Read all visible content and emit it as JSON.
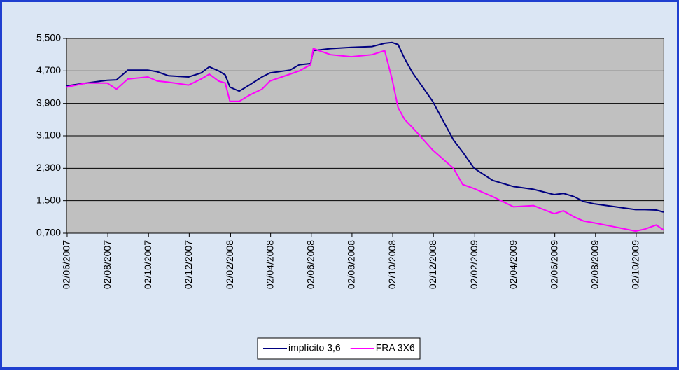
{
  "chart_data": {
    "type": "line",
    "x": [
      "2007-06-01",
      "2007-07-01",
      "2007-08-01",
      "2007-08-15",
      "2007-09-01",
      "2007-10-01",
      "2007-10-15",
      "2007-11-01",
      "2007-12-01",
      "2007-12-20",
      "2008-01-01",
      "2008-01-15",
      "2008-01-25",
      "2008-02-01",
      "2008-02-15",
      "2008-03-01",
      "2008-03-20",
      "2008-04-01",
      "2008-05-01",
      "2008-05-15",
      "2008-06-01",
      "2008-06-05",
      "2008-07-01",
      "2008-08-01",
      "2008-09-01",
      "2008-09-20",
      "2008-10-01",
      "2008-10-10",
      "2008-10-20",
      "2008-11-01",
      "2008-12-01",
      "2009-01-01",
      "2009-01-15",
      "2009-02-01",
      "2009-03-01",
      "2009-04-01",
      "2009-05-01",
      "2009-06-01",
      "2009-06-15",
      "2009-07-01",
      "2009-07-15",
      "2009-08-01",
      "2009-09-01",
      "2009-10-01",
      "2009-10-15",
      "2009-11-01",
      "2009-11-12"
    ],
    "series": [
      {
        "name": "implícito 3,6",
        "color": "#000080",
        "values": [
          4.33,
          4.4,
          4.47,
          4.48,
          4.72,
          4.72,
          4.68,
          4.58,
          4.55,
          4.65,
          4.8,
          4.7,
          4.6,
          4.3,
          4.2,
          4.35,
          4.55,
          4.65,
          4.72,
          4.85,
          4.88,
          5.2,
          5.25,
          5.28,
          5.3,
          5.38,
          5.4,
          5.35,
          5.0,
          4.65,
          3.95,
          3.0,
          2.7,
          2.3,
          2.0,
          1.85,
          1.78,
          1.65,
          1.68,
          1.6,
          1.48,
          1.42,
          1.35,
          1.28,
          1.28,
          1.27,
          1.22
        ]
      },
      {
        "name": "FRA 3X6",
        "color": "#ff00ff",
        "values": [
          4.3,
          4.4,
          4.4,
          4.25,
          4.5,
          4.55,
          4.45,
          4.42,
          4.35,
          4.5,
          4.62,
          4.45,
          4.4,
          3.95,
          3.95,
          4.1,
          4.25,
          4.45,
          4.62,
          4.7,
          4.85,
          5.25,
          5.1,
          5.05,
          5.1,
          5.2,
          4.5,
          3.8,
          3.5,
          3.3,
          2.75,
          2.3,
          1.9,
          1.8,
          1.6,
          1.35,
          1.38,
          1.18,
          1.25,
          1.1,
          1.0,
          0.95,
          0.85,
          0.75,
          0.8,
          0.9,
          0.78
        ]
      }
    ],
    "xlim": [
      "2007-06-01",
      "2009-11-12"
    ],
    "xticks": [
      {
        "value": "2007-06-02",
        "label": "02/06/2007"
      },
      {
        "value": "2007-08-02",
        "label": "02/08/2007"
      },
      {
        "value": "2007-10-02",
        "label": "02/10/2007"
      },
      {
        "value": "2007-12-02",
        "label": "02/12/2007"
      },
      {
        "value": "2008-02-02",
        "label": "02/02/2008"
      },
      {
        "value": "2008-04-02",
        "label": "02/04/2008"
      },
      {
        "value": "2008-06-02",
        "label": "02/06/2008"
      },
      {
        "value": "2008-08-02",
        "label": "02/08/2008"
      },
      {
        "value": "2008-10-02",
        "label": "02/10/2008"
      },
      {
        "value": "2008-12-02",
        "label": "02/12/2008"
      },
      {
        "value": "2009-02-02",
        "label": "02/02/2009"
      },
      {
        "value": "2009-04-02",
        "label": "02/04/2009"
      },
      {
        "value": "2009-06-02",
        "label": "02/06/2009"
      },
      {
        "value": "2009-08-02",
        "label": "02/08/2009"
      },
      {
        "value": "2009-10-02",
        "label": "02/10/2009"
      }
    ],
    "ylim": [
      0.7,
      5.5
    ],
    "yticks": [
      {
        "value": 0.7,
        "label": "0,700"
      },
      {
        "value": 1.5,
        "label": "1,500"
      },
      {
        "value": 2.3,
        "label": "2,300"
      },
      {
        "value": 3.1,
        "label": "3,100"
      },
      {
        "value": 3.9,
        "label": "3,900"
      },
      {
        "value": 4.7,
        "label": "4,700"
      },
      {
        "value": 5.5,
        "label": "5,500"
      }
    ],
    "grid": true,
    "legend": "bottom"
  }
}
